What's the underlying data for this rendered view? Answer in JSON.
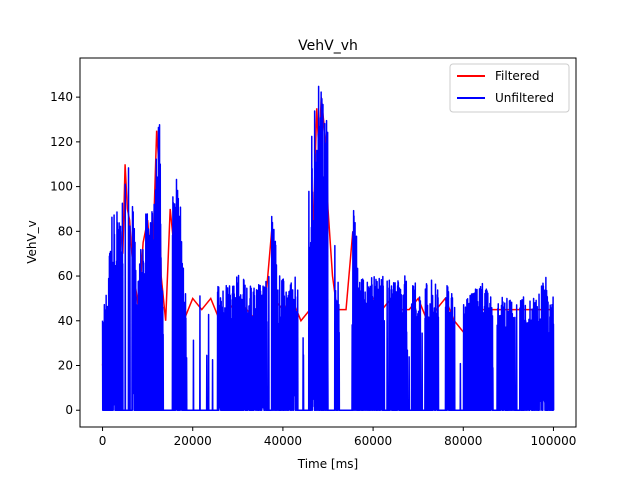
{
  "chart_data": {
    "type": "line",
    "title": "VehV_vh",
    "xlabel": "Time [ms]",
    "ylabel": "VehV_v",
    "xlim": [
      -5000,
      105000
    ],
    "ylim": [
      -7.5,
      157.5
    ],
    "xticks": [
      0,
      20000,
      40000,
      60000,
      80000,
      100000
    ],
    "xtick_labels": [
      "0",
      "20000",
      "40000",
      "60000",
      "80000",
      "100000"
    ],
    "yticks": [
      0,
      20,
      40,
      60,
      80,
      100,
      120,
      140
    ],
    "ytick_labels": [
      "0",
      "20",
      "40",
      "60",
      "80",
      "100",
      "120",
      "140"
    ],
    "grid": false,
    "legend_position": "top-right",
    "series": [
      {
        "name": "Filtered",
        "color": "#ff0000",
        "x": [
          0,
          500,
          1000,
          1500,
          2000,
          2500,
          3000,
          3500,
          4000,
          4500,
          5000,
          5500,
          6000,
          6500,
          7000,
          8000,
          9000,
          10000,
          11000,
          12000,
          12500,
          13000,
          14000,
          15000,
          16000,
          17000,
          18000,
          19000,
          20000,
          22000,
          24000,
          26000,
          28000,
          30000,
          32000,
          34000,
          36000,
          37500,
          38000,
          40000,
          42000,
          44000,
          46000,
          47000,
          47500,
          48000,
          48500,
          49000,
          49500,
          50000,
          51000,
          52000,
          54000,
          55500,
          56000,
          58000,
          60000,
          62000,
          64000,
          66000,
          68000,
          70000,
          72000,
          74000,
          76000,
          78000,
          80000,
          82000,
          84000,
          86000,
          88000,
          90000,
          92000,
          94000,
          96000,
          98000,
          100000
        ],
        "values": [
          20,
          30,
          40,
          45,
          55,
          60,
          50,
          60,
          80,
          70,
          110,
          90,
          85,
          70,
          60,
          45,
          75,
          85,
          60,
          125,
          110,
          60,
          40,
          90,
          70,
          50,
          40,
          45,
          50,
          45,
          50,
          40,
          45,
          50,
          45,
          40,
          45,
          80,
          50,
          45,
          50,
          40,
          45,
          100,
          135,
          115,
          140,
          130,
          120,
          90,
          60,
          45,
          45,
          80,
          50,
          45,
          50,
          45,
          50,
          45,
          45,
          50,
          40,
          45,
          50,
          40,
          35,
          45,
          45,
          45,
          45,
          45,
          45,
          45,
          45,
          45,
          45
        ]
      },
      {
        "name": "Unfiltered",
        "color": "#0000ff",
        "profile": [
          [
            0,
            52
          ],
          [
            1000,
            53
          ],
          [
            2000,
            88
          ],
          [
            3000,
            89
          ],
          [
            4000,
            89
          ],
          [
            5000,
            122
          ],
          [
            6000,
            117
          ],
          [
            6800,
            90
          ],
          [
            7800,
            55
          ],
          [
            9000,
            91
          ],
          [
            10000,
            89
          ],
          [
            11000,
            92
          ],
          [
            12000,
            136
          ],
          [
            12800,
            132
          ],
          [
            13500,
            40
          ],
          [
            14500,
            40
          ],
          [
            15500,
            106
          ],
          [
            17000,
            104
          ],
          [
            18000,
            60
          ],
          [
            20000,
            60
          ],
          [
            22000,
            60
          ],
          [
            24000,
            59
          ],
          [
            26000,
            55
          ],
          [
            28000,
            57
          ],
          [
            30000,
            62
          ],
          [
            32000,
            57
          ],
          [
            34000,
            56
          ],
          [
            36000,
            58
          ],
          [
            37800,
            97
          ],
          [
            38800,
            62
          ],
          [
            40000,
            59
          ],
          [
            42000,
            59
          ],
          [
            44000,
            62
          ],
          [
            46000,
            113
          ],
          [
            47500,
            151
          ],
          [
            48500,
            143
          ],
          [
            49500,
            147
          ],
          [
            50500,
            119
          ],
          [
            52000,
            57
          ],
          [
            54000,
            60
          ],
          [
            55800,
            105
          ],
          [
            57000,
            59
          ],
          [
            58000,
            60
          ],
          [
            60000,
            62
          ],
          [
            62000,
            62
          ],
          [
            64000,
            60
          ],
          [
            66000,
            59
          ],
          [
            68000,
            63
          ],
          [
            70000,
            57
          ],
          [
            72000,
            57
          ],
          [
            74000,
            60
          ],
          [
            76000,
            57
          ],
          [
            78000,
            54
          ],
          [
            80000,
            52
          ],
          [
            82000,
            52
          ],
          [
            84000,
            58
          ],
          [
            86000,
            52
          ],
          [
            88000,
            52
          ],
          [
            90000,
            51
          ],
          [
            92000,
            52
          ],
          [
            94000,
            51
          ],
          [
            96000,
            56
          ],
          [
            98000,
            61
          ],
          [
            100000,
            51
          ]
        ],
        "zero_gaps": [
          [
            4500,
            6500
          ],
          [
            13500,
            15500
          ],
          [
            18500,
            25500
          ],
          [
            36500,
            37500
          ],
          [
            43000,
            46000
          ],
          [
            50000,
            51500
          ],
          [
            52500,
            55500
          ],
          [
            62500,
            63500
          ],
          [
            67500,
            68500
          ],
          [
            70500,
            71500
          ],
          [
            74500,
            76000
          ],
          [
            78000,
            80000
          ],
          [
            86500,
            87500
          ],
          [
            91500,
            92500
          ]
        ]
      }
    ]
  }
}
